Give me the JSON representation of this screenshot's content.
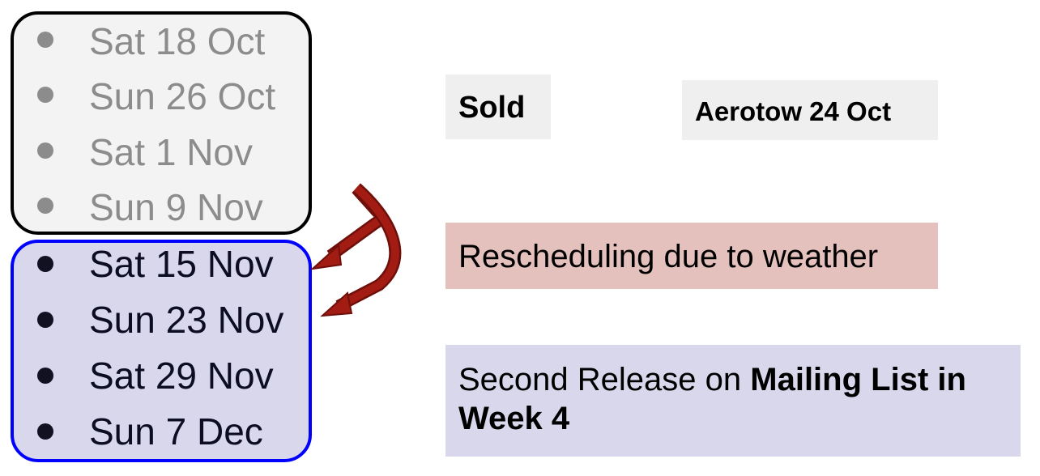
{
  "sold_dates": [
    {
      "label": "Sat 18 Oct"
    },
    {
      "label": "Sun 26 Oct"
    },
    {
      "label": "Sat 1 Nov"
    },
    {
      "label": "Sun 9 Nov"
    }
  ],
  "new_dates": [
    {
      "label": "Sat 15 Nov"
    },
    {
      "label": "Sun 23 Nov"
    },
    {
      "label": "Sat 29 Nov"
    },
    {
      "label": "Sun 7 Dec"
    }
  ],
  "labels": {
    "sold": "Sold",
    "aerotow": "Aerotow 24 Oct",
    "rescheduling": "Rescheduling due to weather",
    "release_prefix": "Second Release on ",
    "release_bold": "Mailing List in Week 4"
  },
  "colors": {
    "sold_group_border": "#000000",
    "sold_group_fill": "#f3f3f3",
    "new_group_border": "#0000ff",
    "new_group_fill": "#d9d7ec",
    "muted_text": "#8c8c8c",
    "arrow": "#a31c14",
    "rescheduling_fill": "#e5c1bd",
    "release_fill": "#d9d7ec",
    "label_fill": "#efefef"
  }
}
